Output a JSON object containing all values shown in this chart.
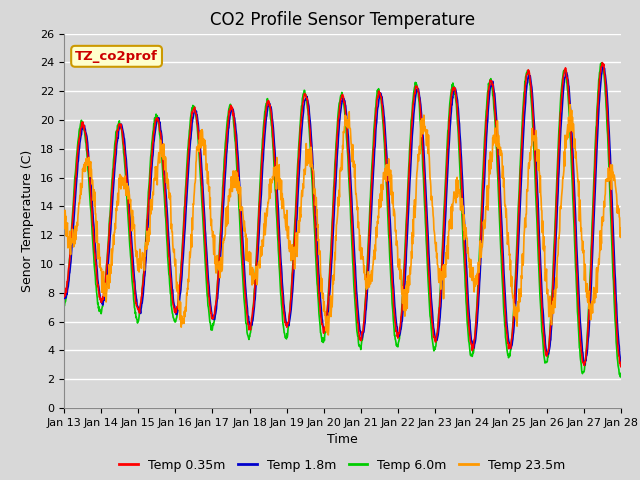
{
  "title": "CO2 Profile Sensor Temperature",
  "xlabel": "Time",
  "ylabel": "Senor Temperature (C)",
  "ylim": [
    0,
    26
  ],
  "yticks": [
    0,
    2,
    4,
    6,
    8,
    10,
    12,
    14,
    16,
    18,
    20,
    22,
    24,
    26
  ],
  "annotation_text": "TZ_co2prof",
  "annotation_bg": "#ffffcc",
  "annotation_border": "#cc9900",
  "annotation_text_color": "#cc0000",
  "line_colors": {
    "temp035": "#ff0000",
    "temp18": "#0000cc",
    "temp60": "#00cc00",
    "temp235": "#ff9900"
  },
  "line_widths": {
    "temp035": 1.2,
    "temp18": 1.2,
    "temp60": 1.2,
    "temp235": 1.2
  },
  "legend_labels": [
    "Temp 0.35m",
    "Temp 1.8m",
    "Temp 6.0m",
    "Temp 23.5m"
  ],
  "bg_color": "#d8d8d8",
  "axes_bg_color": "#d8d8d8",
  "grid_color": "#ffffff",
  "title_fontsize": 12,
  "label_fontsize": 9,
  "tick_fontsize": 8
}
